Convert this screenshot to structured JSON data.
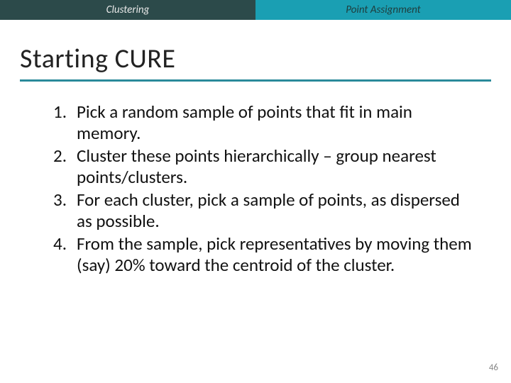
{
  "header": {
    "left": "Clustering",
    "right": "Point Assignment",
    "left_bg": "#2c4a4a",
    "right_bg": "#1a9fb3"
  },
  "title": {
    "text": "Starting CURE",
    "underline_color": "#2a8a9a",
    "fontsize": 38
  },
  "list": {
    "items": [
      "Pick a random sample of points that fit in main memory.",
      "Cluster these points hierarchically – group nearest points/clusters.",
      "For each cluster, pick a sample of points, as dispersed as possible.",
      "From the sample, pick representatives by moving them (say) 20% toward the centroid of the cluster."
    ],
    "fontsize": 25
  },
  "page_number": "46",
  "colors": {
    "background": "#ffffff",
    "text": "#111111",
    "page_num": "#888888"
  }
}
